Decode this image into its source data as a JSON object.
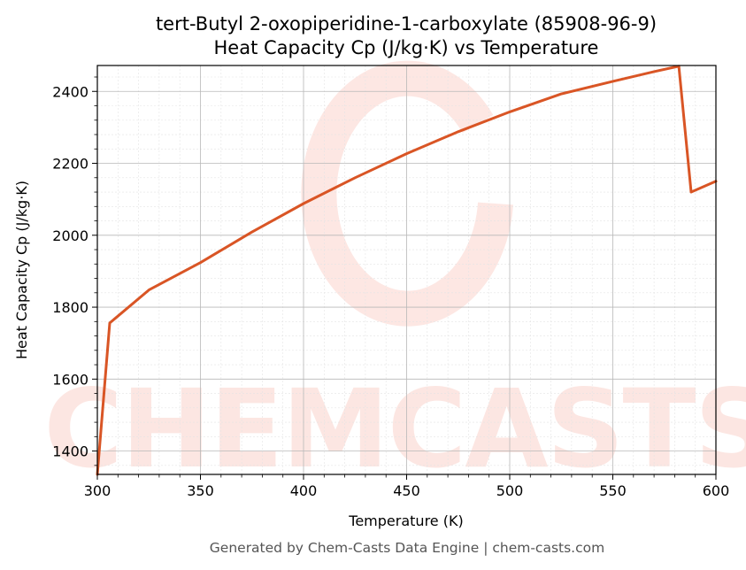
{
  "chart_data": {
    "type": "line",
    "title_lines": [
      "tert-Butyl 2-oxopiperidine-1-carboxylate (85908-96-9)",
      "Heat Capacity Cp (J/kg·K) vs Temperature"
    ],
    "xlabel": "Temperature (K)",
    "ylabel": "Heat Capacity Cp (J/kg·K)",
    "xlim": [
      300,
      600
    ],
    "ylim": [
      1335,
      2472
    ],
    "x_ticks": [
      300,
      350,
      400,
      450,
      500,
      550,
      600
    ],
    "y_ticks": [
      1400,
      1600,
      1800,
      2000,
      2200,
      2400
    ],
    "grid": true,
    "minor_grid": true,
    "legend": "none",
    "series": [
      {
        "color": "#d95525",
        "x": [
          300,
          306,
          325,
          350,
          375,
          400,
          425,
          450,
          475,
          500,
          525,
          550,
          570,
          582,
          588,
          600
        ],
        "y": [
          1335,
          1756,
          1848,
          1924,
          2009,
          2088,
          2160,
          2227,
          2288,
          2343,
          2393,
          2428,
          2455,
          2470,
          2120,
          2150
        ]
      }
    ]
  },
  "watermark_text": "CHEMCASTS",
  "footer": "Generated by Chem-Casts Data Engine | chem-casts.com"
}
